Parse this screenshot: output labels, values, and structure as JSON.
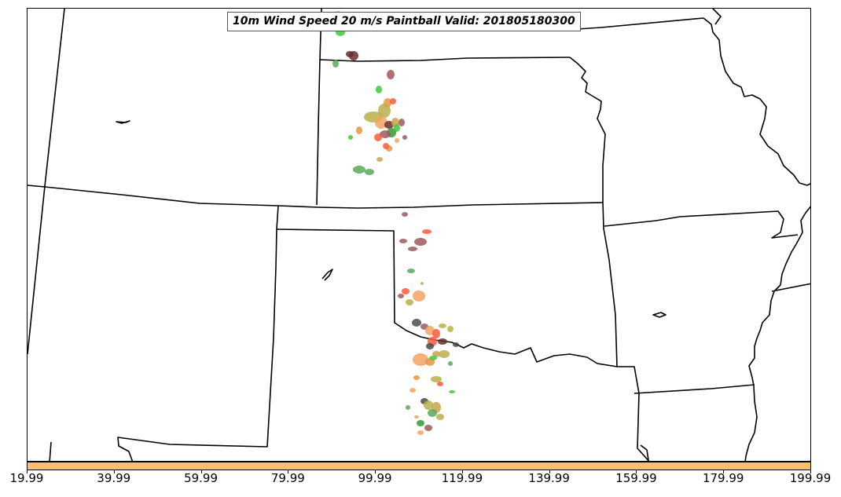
{
  "title": "10m Wind Speed 20 m/s Paintball Valid: 201805180300",
  "colorbar": {
    "color": "#fdc06a",
    "ticks": [
      "19.99",
      "39.99",
      "59.99",
      "79.99",
      "99.99",
      "119.99",
      "139.99",
      "159.99",
      "179.99",
      "199.99"
    ]
  },
  "map": {
    "boundary_color": "#000000",
    "paintball_colors": [
      "#f4a261",
      "#e7943c",
      "#6b2d2d",
      "#9c5a5a",
      "#5aa85a",
      "#3ec93e",
      "#ff5a3c",
      "#b8b04a",
      "#4a4a4a",
      "#2e9e2e",
      "#c8a34a"
    ]
  }
}
